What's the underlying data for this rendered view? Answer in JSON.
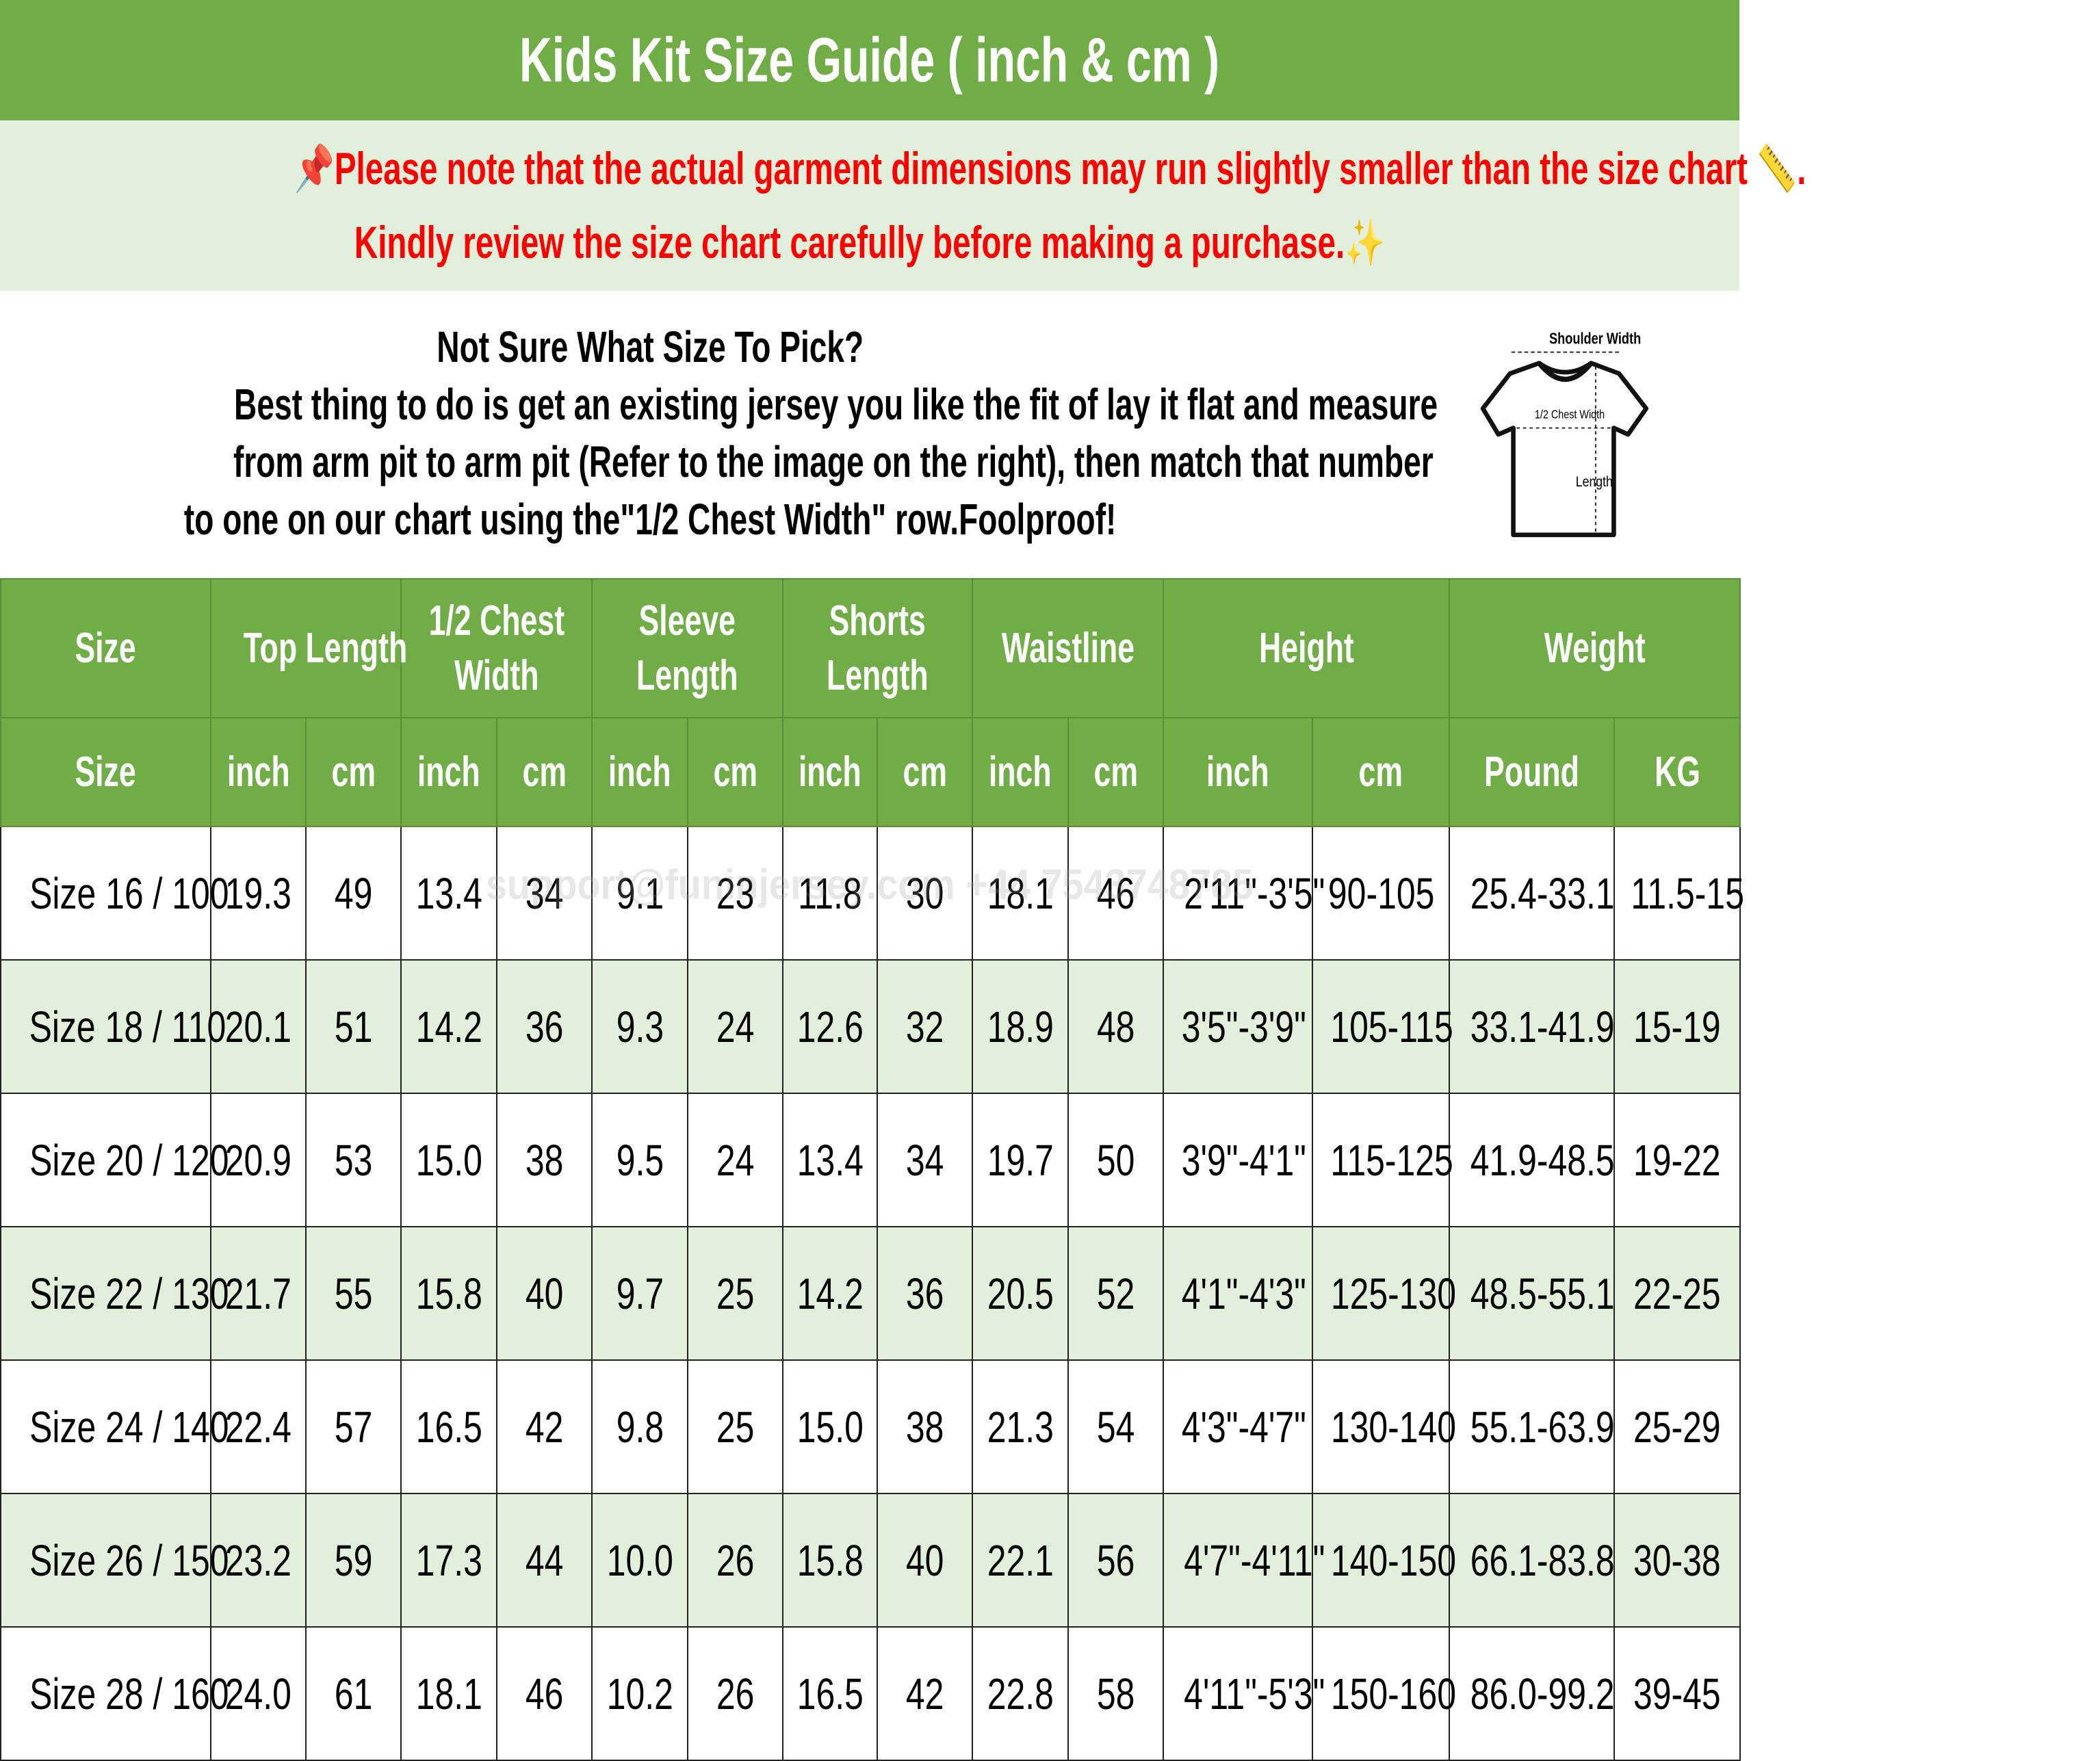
{
  "title": "Kids Kit Size Guide ( inch & cm )",
  "notice": {
    "line1": "Please note that the actual garment dimensions may run slightly smaller than the size chart",
    "line1_end": ".",
    "line2": "Kindly review the size chart carefully before making a purchase.",
    "icons": [
      "pushpin-icon",
      "ruler-icon",
      "sparkles-icon"
    ],
    "color": "#FF0000"
  },
  "info": {
    "heading": "Not Sure What Size To Pick?",
    "lines": [
      "Best thing to do is get an existing jersey you like the fit of lay it flat and measure",
      "from arm pit to arm pit (Refer to the image on the right), then match that number",
      "to one on our chart using the\"1/2 Chest Width\" row.Foolproof!"
    ],
    "diagram": {
      "shoulder": "Shoulder Width",
      "chest": "1/2 Chest Width",
      "length": "Length"
    }
  },
  "watermark": "support@funinjersey.com +44 7543748785",
  "colors": {
    "header_green": "#70AD47",
    "light_green": "#E2EFDA"
  },
  "table": {
    "groups": [
      {
        "label": "Size",
        "l2": ""
      },
      {
        "label": "Top Length",
        "l2": ""
      },
      {
        "label": "1/2 Chest",
        "l2": "Width"
      },
      {
        "label": "Sleeve",
        "l2": "Length"
      },
      {
        "label": "Shorts",
        "l2": "Length"
      },
      {
        "label": "Waistline",
        "l2": ""
      },
      {
        "label": "Height",
        "l2": ""
      },
      {
        "label": "Weight",
        "l2": ""
      }
    ],
    "units": [
      "Size",
      "inch",
      "cm",
      "inch",
      "cm",
      "inch",
      "cm",
      "inch",
      "cm",
      "inch",
      "cm",
      "inch",
      "cm",
      "Pound",
      "KG"
    ],
    "rows": [
      [
        "Size 16 / 100",
        "19.3",
        "49",
        "13.4",
        "34",
        "9.1",
        "23",
        "11.8",
        "30",
        "18.1",
        "46",
        "2'11\"-3'5\"",
        "90-105",
        "25.4-33.1",
        "11.5-15"
      ],
      [
        "Size 18 / 110",
        "20.1",
        "51",
        "14.2",
        "36",
        "9.3",
        "24",
        "12.6",
        "32",
        "18.9",
        "48",
        "3'5\"-3'9\"",
        "105-115",
        "33.1-41.9",
        "15-19"
      ],
      [
        "Size 20 / 120",
        "20.9",
        "53",
        "15.0",
        "38",
        "9.5",
        "24",
        "13.4",
        "34",
        "19.7",
        "50",
        "3'9\"-4'1\"",
        "115-125",
        "41.9-48.5",
        "19-22"
      ],
      [
        "Size 22 / 130",
        "21.7",
        "55",
        "15.8",
        "40",
        "9.7",
        "25",
        "14.2",
        "36",
        "20.5",
        "52",
        "4'1\"-4'3\"",
        "125-130",
        "48.5-55.1",
        "22-25"
      ],
      [
        "Size 24 / 140",
        "22.4",
        "57",
        "16.5",
        "42",
        "9.8",
        "25",
        "15.0",
        "38",
        "21.3",
        "54",
        "4'3\"-4'7\"",
        "130-140",
        "55.1-63.9",
        "25-29"
      ],
      [
        "Size 26 / 150",
        "23.2",
        "59",
        "17.3",
        "44",
        "10.0",
        "26",
        "15.8",
        "40",
        "22.1",
        "56",
        "4'7\"-4'11\"",
        "140-150",
        "66.1-83.8",
        "30-38"
      ],
      [
        "Size 28 / 160",
        "24.0",
        "61",
        "18.1",
        "46",
        "10.2",
        "26",
        "16.5",
        "42",
        "22.8",
        "58",
        "4'11\"-5'3\"",
        "150-160",
        "86.0-99.2",
        "39-45"
      ]
    ]
  }
}
